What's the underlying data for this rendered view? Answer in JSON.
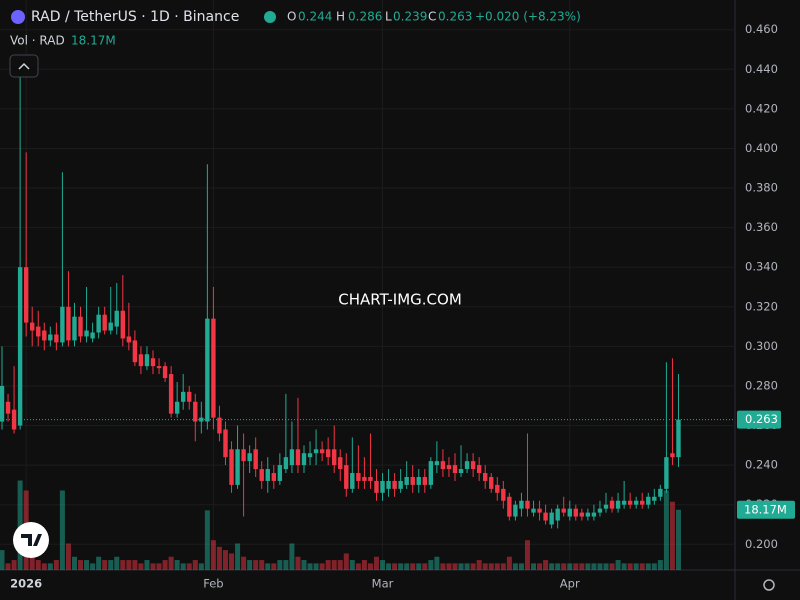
{
  "header": {
    "title": "RAD / TetherUS · 1D · Binance",
    "o_label": "O",
    "o": "0.244",
    "h_label": "H",
    "h": "0.286",
    "l_label": "L",
    "l": "0.239",
    "c_label": "C",
    "c": "0.263",
    "change": "+0.020 (+8.23%)",
    "vol_label": "Vol · RAD",
    "vol": "18.17M"
  },
  "watermark": "CHART-IMG.COM",
  "chart_data": {
    "type": "candlestick",
    "up_color": "#22ab94",
    "down_color": "#f23645",
    "ylim": [
      0.187,
      0.475
    ],
    "yticks": [
      {
        "value": 0.2,
        "label": "0.200"
      },
      {
        "value": 0.22,
        "label": "0.220"
      },
      {
        "value": 0.24,
        "label": "0.240"
      },
      {
        "value": 0.26,
        "label": "0.260"
      },
      {
        "value": 0.28,
        "label": "0.280"
      },
      {
        "value": 0.3,
        "label": "0.300"
      },
      {
        "value": 0.32,
        "label": "0.320"
      },
      {
        "value": 0.34,
        "label": "0.340"
      },
      {
        "value": 0.36,
        "label": "0.360"
      },
      {
        "value": 0.38,
        "label": "0.380"
      },
      {
        "value": 0.4,
        "label": "0.400"
      },
      {
        "value": 0.42,
        "label": "0.420"
      },
      {
        "value": 0.44,
        "label": "0.440"
      },
      {
        "value": 0.46,
        "label": "0.460"
      }
    ],
    "xticks": [
      {
        "value": 4,
        "label": "2026"
      },
      {
        "value": 35,
        "label": "Feb"
      },
      {
        "value": 63,
        "label": "Mar"
      },
      {
        "value": 94,
        "label": "Apr"
      }
    ],
    "last_price": {
      "value": 0.263,
      "label": "0.263"
    },
    "last_volume": {
      "value": 18.17,
      "label": "18.17M"
    },
    "vlim": [
      0,
      172
    ],
    "ohlc": [
      [
        0.262,
        0.3,
        0.258,
        0.28
      ],
      [
        0.272,
        0.276,
        0.262,
        0.266
      ],
      [
        0.268,
        0.29,
        0.256,
        0.258
      ],
      [
        0.26,
        0.44,
        0.258,
        0.34
      ],
      [
        0.34,
        0.398,
        0.305,
        0.312
      ],
      [
        0.312,
        0.32,
        0.3,
        0.308
      ],
      [
        0.31,
        0.318,
        0.3,
        0.305
      ],
      [
        0.308,
        0.312,
        0.298,
        0.303
      ],
      [
        0.303,
        0.31,
        0.3,
        0.306
      ],
      [
        0.306,
        0.312,
        0.298,
        0.302
      ],
      [
        0.302,
        0.388,
        0.3,
        0.32
      ],
      [
        0.32,
        0.338,
        0.3,
        0.303
      ],
      [
        0.303,
        0.322,
        0.3,
        0.315
      ],
      [
        0.315,
        0.32,
        0.302,
        0.305
      ],
      [
        0.305,
        0.33,
        0.302,
        0.308
      ],
      [
        0.304,
        0.312,
        0.302,
        0.307
      ],
      [
        0.307,
        0.32,
        0.304,
        0.316
      ],
      [
        0.316,
        0.32,
        0.306,
        0.308
      ],
      [
        0.308,
        0.33,
        0.306,
        0.312
      ],
      [
        0.31,
        0.332,
        0.306,
        0.318
      ],
      [
        0.318,
        0.336,
        0.3,
        0.304
      ],
      [
        0.305,
        0.322,
        0.298,
        0.302
      ],
      [
        0.303,
        0.308,
        0.29,
        0.292
      ],
      [
        0.296,
        0.3,
        0.286,
        0.29
      ],
      [
        0.29,
        0.3,
        0.288,
        0.296
      ],
      [
        0.294,
        0.298,
        0.286,
        0.29
      ],
      [
        0.29,
        0.294,
        0.286,
        0.289
      ],
      [
        0.29,
        0.292,
        0.282,
        0.284
      ],
      [
        0.286,
        0.29,
        0.264,
        0.266
      ],
      [
        0.266,
        0.282,
        0.264,
        0.272
      ],
      [
        0.272,
        0.286,
        0.268,
        0.277
      ],
      [
        0.277,
        0.28,
        0.268,
        0.272
      ],
      [
        0.272,
        0.276,
        0.252,
        0.262
      ],
      [
        0.262,
        0.272,
        0.256,
        0.264
      ],
      [
        0.262,
        0.392,
        0.258,
        0.314
      ],
      [
        0.314,
        0.33,
        0.258,
        0.264
      ],
      [
        0.264,
        0.27,
        0.252,
        0.256
      ],
      [
        0.258,
        0.262,
        0.24,
        0.244
      ],
      [
        0.248,
        0.252,
        0.226,
        0.23
      ],
      [
        0.23,
        0.26,
        0.228,
        0.248
      ],
      [
        0.248,
        0.256,
        0.214,
        0.242
      ],
      [
        0.242,
        0.25,
        0.236,
        0.246
      ],
      [
        0.248,
        0.254,
        0.234,
        0.238
      ],
      [
        0.238,
        0.242,
        0.228,
        0.232
      ],
      [
        0.232,
        0.244,
        0.226,
        0.238
      ],
      [
        0.236,
        0.24,
        0.228,
        0.232
      ],
      [
        0.232,
        0.246,
        0.23,
        0.24
      ],
      [
        0.238,
        0.276,
        0.236,
        0.244
      ],
      [
        0.24,
        0.262,
        0.236,
        0.248
      ],
      [
        0.248,
        0.274,
        0.236,
        0.24
      ],
      [
        0.24,
        0.25,
        0.236,
        0.246
      ],
      [
        0.244,
        0.252,
        0.24,
        0.246
      ],
      [
        0.246,
        0.258,
        0.24,
        0.248
      ],
      [
        0.248,
        0.252,
        0.242,
        0.246
      ],
      [
        0.248,
        0.254,
        0.24,
        0.244
      ],
      [
        0.248,
        0.26,
        0.236,
        0.24
      ],
      [
        0.244,
        0.248,
        0.232,
        0.238
      ],
      [
        0.24,
        0.246,
        0.224,
        0.228
      ],
      [
        0.228,
        0.254,
        0.226,
        0.236
      ],
      [
        0.236,
        0.25,
        0.228,
        0.232
      ],
      [
        0.234,
        0.244,
        0.228,
        0.232
      ],
      [
        0.234,
        0.256,
        0.228,
        0.232
      ],
      [
        0.232,
        0.238,
        0.222,
        0.226
      ],
      [
        0.226,
        0.236,
        0.222,
        0.232
      ],
      [
        0.228,
        0.238,
        0.224,
        0.232
      ],
      [
        0.232,
        0.236,
        0.224,
        0.228
      ],
      [
        0.228,
        0.238,
        0.226,
        0.232
      ],
      [
        0.23,
        0.242,
        0.228,
        0.234
      ],
      [
        0.234,
        0.24,
        0.226,
        0.23
      ],
      [
        0.23,
        0.238,
        0.226,
        0.234
      ],
      [
        0.234,
        0.238,
        0.226,
        0.23
      ],
      [
        0.23,
        0.244,
        0.228,
        0.242
      ],
      [
        0.24,
        0.252,
        0.236,
        0.242
      ],
      [
        0.242,
        0.248,
        0.234,
        0.238
      ],
      [
        0.24,
        0.244,
        0.234,
        0.238
      ],
      [
        0.24,
        0.246,
        0.232,
        0.236
      ],
      [
        0.236,
        0.25,
        0.234,
        0.238
      ],
      [
        0.238,
        0.246,
        0.236,
        0.242
      ],
      [
        0.242,
        0.246,
        0.234,
        0.238
      ],
      [
        0.24,
        0.244,
        0.232,
        0.236
      ],
      [
        0.236,
        0.24,
        0.228,
        0.232
      ],
      [
        0.234,
        0.236,
        0.226,
        0.228
      ],
      [
        0.23,
        0.234,
        0.222,
        0.226
      ],
      [
        0.228,
        0.232,
        0.218,
        0.222
      ],
      [
        0.224,
        0.226,
        0.212,
        0.214
      ],
      [
        0.214,
        0.222,
        0.212,
        0.22
      ],
      [
        0.218,
        0.226,
        0.214,
        0.222
      ],
      [
        0.222,
        0.256,
        0.214,
        0.218
      ],
      [
        0.216,
        0.222,
        0.214,
        0.218
      ],
      [
        0.218,
        0.222,
        0.212,
        0.216
      ],
      [
        0.216,
        0.22,
        0.21,
        0.212
      ],
      [
        0.21,
        0.218,
        0.208,
        0.216
      ],
      [
        0.212,
        0.22,
        0.208,
        0.218
      ],
      [
        0.218,
        0.224,
        0.214,
        0.216
      ],
      [
        0.214,
        0.222,
        0.212,
        0.218
      ],
      [
        0.218,
        0.22,
        0.212,
        0.214
      ],
      [
        0.216,
        0.218,
        0.212,
        0.214
      ],
      [
        0.214,
        0.218,
        0.212,
        0.216
      ],
      [
        0.214,
        0.22,
        0.212,
        0.216
      ],
      [
        0.216,
        0.222,
        0.214,
        0.218
      ],
      [
        0.218,
        0.226,
        0.216,
        0.22
      ],
      [
        0.222,
        0.224,
        0.216,
        0.218
      ],
      [
        0.218,
        0.226,
        0.216,
        0.222
      ],
      [
        0.22,
        0.232,
        0.218,
        0.222
      ],
      [
        0.222,
        0.226,
        0.218,
        0.22
      ],
      [
        0.22,
        0.224,
        0.218,
        0.222
      ],
      [
        0.222,
        0.226,
        0.218,
        0.22
      ],
      [
        0.22,
        0.226,
        0.218,
        0.224
      ],
      [
        0.222,
        0.228,
        0.22,
        0.224
      ],
      [
        0.224,
        0.23,
        0.222,
        0.228
      ],
      [
        0.228,
        0.292,
        0.226,
        0.244
      ],
      [
        0.246,
        0.294,
        0.24,
        0.244
      ],
      [
        0.244,
        0.286,
        0.239,
        0.263
      ]
    ],
    "volume": [
      6,
      2,
      3,
      27,
      24,
      4,
      3,
      2,
      2,
      3,
      24,
      8,
      4,
      3,
      3,
      2,
      4,
      3,
      3,
      4,
      3,
      3,
      3,
      2,
      3,
      2,
      2,
      3,
      4,
      3,
      2,
      2,
      3,
      2,
      18,
      9,
      7,
      6,
      5,
      8,
      4,
      3,
      3,
      3,
      2,
      2,
      3,
      3,
      8,
      4,
      3,
      2,
      2,
      2,
      3,
      3,
      3,
      5,
      3,
      2,
      3,
      2,
      4,
      3,
      2,
      2,
      2,
      2,
      2,
      2,
      2,
      3,
      4,
      2,
      2,
      2,
      2,
      2,
      2,
      3,
      2,
      2,
      2,
      2,
      4,
      2,
      2,
      9,
      2,
      2,
      3,
      2,
      2,
      2,
      2,
      2,
      2,
      2,
      2,
      2,
      2,
      2,
      3,
      2,
      2,
      2,
      2,
      2,
      2,
      3,
      24,
      20.6,
      18.17
    ]
  }
}
